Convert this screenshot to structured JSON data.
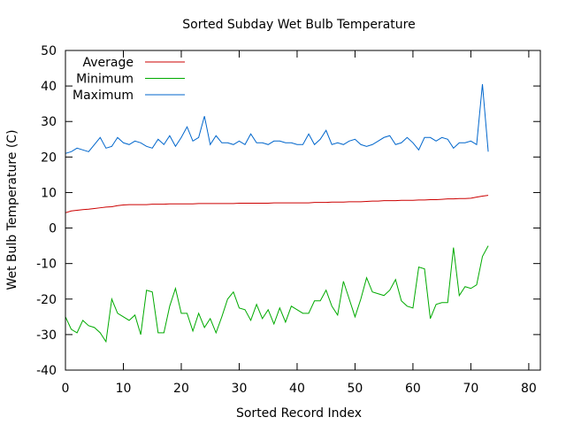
{
  "chart_data": {
    "type": "line",
    "title": "Sorted Subday Wet Bulb Temperature",
    "xlabel": "Sorted Record Index",
    "ylabel": "Wet Bulb Temperature (C)",
    "xlim": [
      0,
      82
    ],
    "ylim": [
      -40,
      50
    ],
    "xticks": [
      0,
      10,
      20,
      30,
      40,
      50,
      60,
      70,
      80
    ],
    "yticks": [
      -40,
      -30,
      -20,
      -10,
      0,
      10,
      20,
      30,
      40,
      50
    ],
    "grid": false,
    "legend_position": "top-left",
    "x": [
      0,
      1,
      2,
      3,
      4,
      5,
      6,
      7,
      8,
      9,
      10,
      11,
      12,
      13,
      14,
      15,
      16,
      17,
      18,
      19,
      20,
      21,
      22,
      23,
      24,
      25,
      26,
      27,
      28,
      29,
      30,
      31,
      32,
      33,
      34,
      35,
      36,
      37,
      38,
      39,
      40,
      41,
      42,
      43,
      44,
      45,
      46,
      47,
      48,
      49,
      50,
      51,
      52,
      53,
      54,
      55,
      56,
      57,
      58,
      59,
      60,
      61,
      62,
      63,
      64,
      65,
      66,
      67,
      68,
      69,
      70,
      71,
      72,
      73
    ],
    "series": [
      {
        "name": "Average",
        "color": "#cc0000",
        "values": [
          4.3,
          4.8,
          5.0,
          5.2,
          5.3,
          5.5,
          5.7,
          5.9,
          6.0,
          6.3,
          6.5,
          6.6,
          6.6,
          6.6,
          6.6,
          6.7,
          6.7,
          6.7,
          6.8,
          6.8,
          6.8,
          6.8,
          6.8,
          6.9,
          6.9,
          6.9,
          6.9,
          6.9,
          6.9,
          6.9,
          7.0,
          7.0,
          7.0,
          7.0,
          7.0,
          7.0,
          7.1,
          7.1,
          7.1,
          7.1,
          7.1,
          7.1,
          7.1,
          7.2,
          7.2,
          7.2,
          7.3,
          7.3,
          7.3,
          7.4,
          7.4,
          7.4,
          7.5,
          7.6,
          7.6,
          7.7,
          7.7,
          7.7,
          7.8,
          7.8,
          7.8,
          7.9,
          7.9,
          8.0,
          8.0,
          8.1,
          8.2,
          8.2,
          8.3,
          8.3,
          8.4,
          8.7,
          9.0,
          9.2
        ]
      },
      {
        "name": "Minimum",
        "color": "#00aa00",
        "values": [
          -25,
          -28.5,
          -29.5,
          -26,
          -27.5,
          -28,
          -29.5,
          -32,
          -20,
          -24,
          -25,
          -26,
          -24.5,
          -30,
          -17.5,
          -18,
          -29.5,
          -29.5,
          -22,
          -17,
          -24,
          -24,
          -29,
          -24,
          -28,
          -25.5,
          -29.5,
          -25,
          -20,
          -18,
          -22.5,
          -23,
          -26,
          -21.5,
          -25.5,
          -23,
          -27,
          -22.5,
          -26.5,
          -22,
          -23,
          -24,
          -24,
          -20.5,
          -20.5,
          -17.5,
          -22,
          -24.5,
          -15,
          -20,
          -25,
          -20,
          -14,
          -18,
          -18.5,
          -19,
          -17.5,
          -14.5,
          -20.5,
          -22,
          -22.5,
          -11,
          -11.5,
          -25.5,
          -21.5,
          -21,
          -21,
          -5.5,
          -19,
          -16.5,
          -17,
          -16,
          -8,
          -5
        ]
      },
      {
        "name": "Maximum",
        "color": "#0066cc",
        "values": [
          21,
          21.5,
          22.5,
          22,
          21.5,
          23.5,
          25.5,
          22.5,
          23,
          25.5,
          24,
          23.5,
          24.5,
          24,
          23,
          22.5,
          25,
          23.5,
          26,
          23,
          25.5,
          28.5,
          24.5,
          25.5,
          31.5,
          23.5,
          26,
          24,
          24,
          23.5,
          24.5,
          23.5,
          26.5,
          24,
          24,
          23.5,
          24.5,
          24.5,
          24,
          24,
          23.5,
          23.5,
          26.5,
          23.5,
          25,
          27.5,
          23.5,
          24,
          23.5,
          24.5,
          25,
          23.5,
          23,
          23.5,
          24.5,
          25.5,
          26,
          23.5,
          24,
          25.5,
          24,
          22,
          25.5,
          25.5,
          24.5,
          25.5,
          25,
          22.5,
          24,
          24,
          24.5,
          23.5,
          40.5,
          21.5
        ]
      }
    ]
  }
}
